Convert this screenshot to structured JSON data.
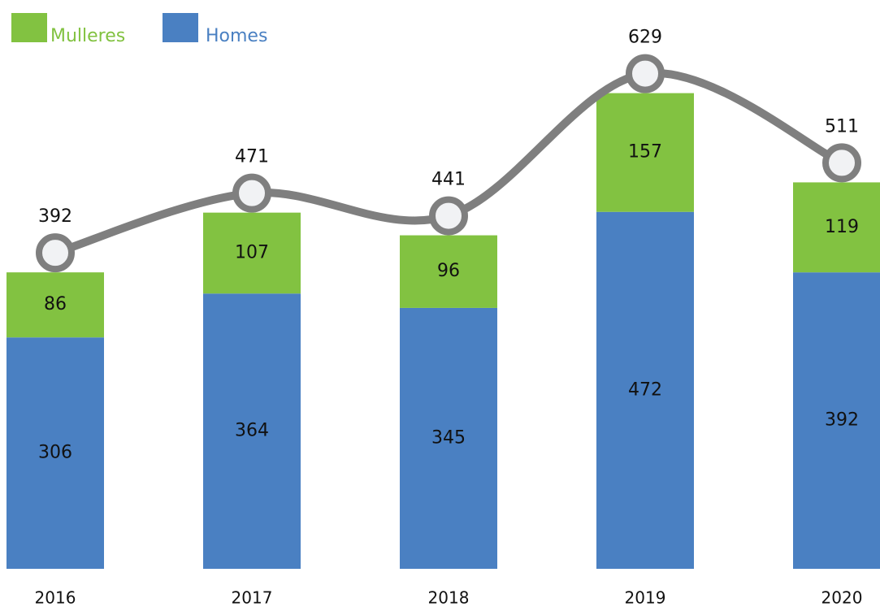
{
  "chart_data": {
    "type": "stacked-bar-line",
    "categories": [
      "2016",
      "2017",
      "2018",
      "2019",
      "2020"
    ],
    "series": [
      {
        "name": "Homes",
        "color": "#4a80c2",
        "values": [
          306,
          364,
          345,
          472,
          392
        ]
      },
      {
        "name": "Mulleres",
        "color": "#82c241",
        "values": [
          86,
          107,
          96,
          157,
          119
        ]
      }
    ],
    "line_values": [
      392,
      471,
      441,
      629,
      511
    ],
    "line_color": "#7f7f7f",
    "ylim": [
      0,
      750
    ],
    "grid": false
  }
}
